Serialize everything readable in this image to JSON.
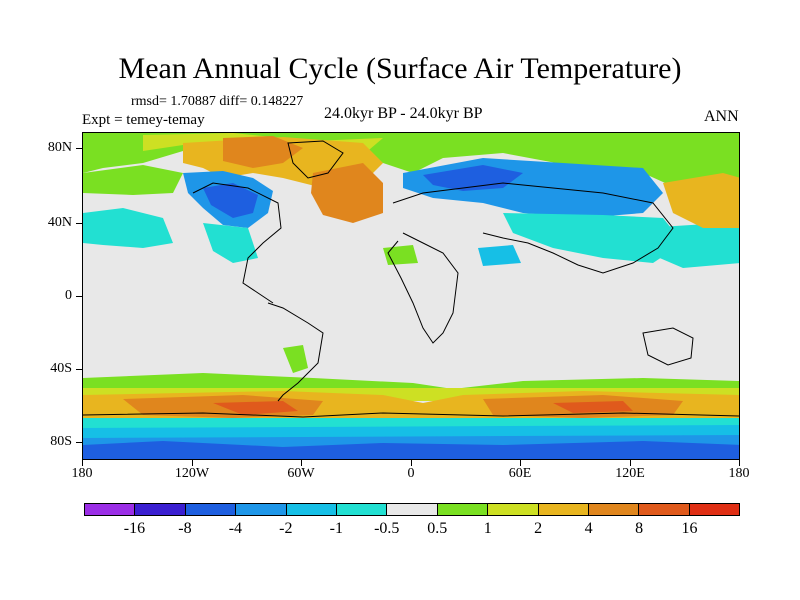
{
  "title": "Mean Annual Cycle (Surface Air Temperature)",
  "stats": "rmsd= 1.70887 diff= 0.148227",
  "expt": "Expt = temey-temay",
  "period": "24.0kyr BP - 24.0kyr BP",
  "season": "ANN",
  "lat_labels": [
    "80N",
    "40N",
    "0",
    "40S",
    "80S"
  ],
  "lon_labels": [
    "180",
    "120W",
    "60W",
    "0",
    "60E",
    "120E",
    "180"
  ],
  "colorbar": {
    "colors": [
      "#9b2ee6",
      "#3b1fd1",
      "#1e5fe0",
      "#1e96e8",
      "#16bfe6",
      "#22e0d2",
      "#e8e8e8",
      "#7ae022",
      "#cde023",
      "#e8b51f",
      "#e0861d",
      "#e05a1c",
      "#e02f14"
    ],
    "labels": [
      "-16",
      "-8",
      "-4",
      "-2",
      "-1",
      "-0.5",
      "0.5",
      "1",
      "2",
      "4",
      "8",
      "16"
    ]
  },
  "palette": {
    "neutral": "#e8e8e8",
    "cyan": "#22e0d2",
    "light_blue": "#16bfe6",
    "blue": "#1e96e8",
    "dark_blue": "#1e5fe0",
    "green": "#7ae022",
    "yellow": "#cde023",
    "orange": "#e8b51f",
    "dark_orange": "#e0861d",
    "red": "#e05a1c"
  }
}
